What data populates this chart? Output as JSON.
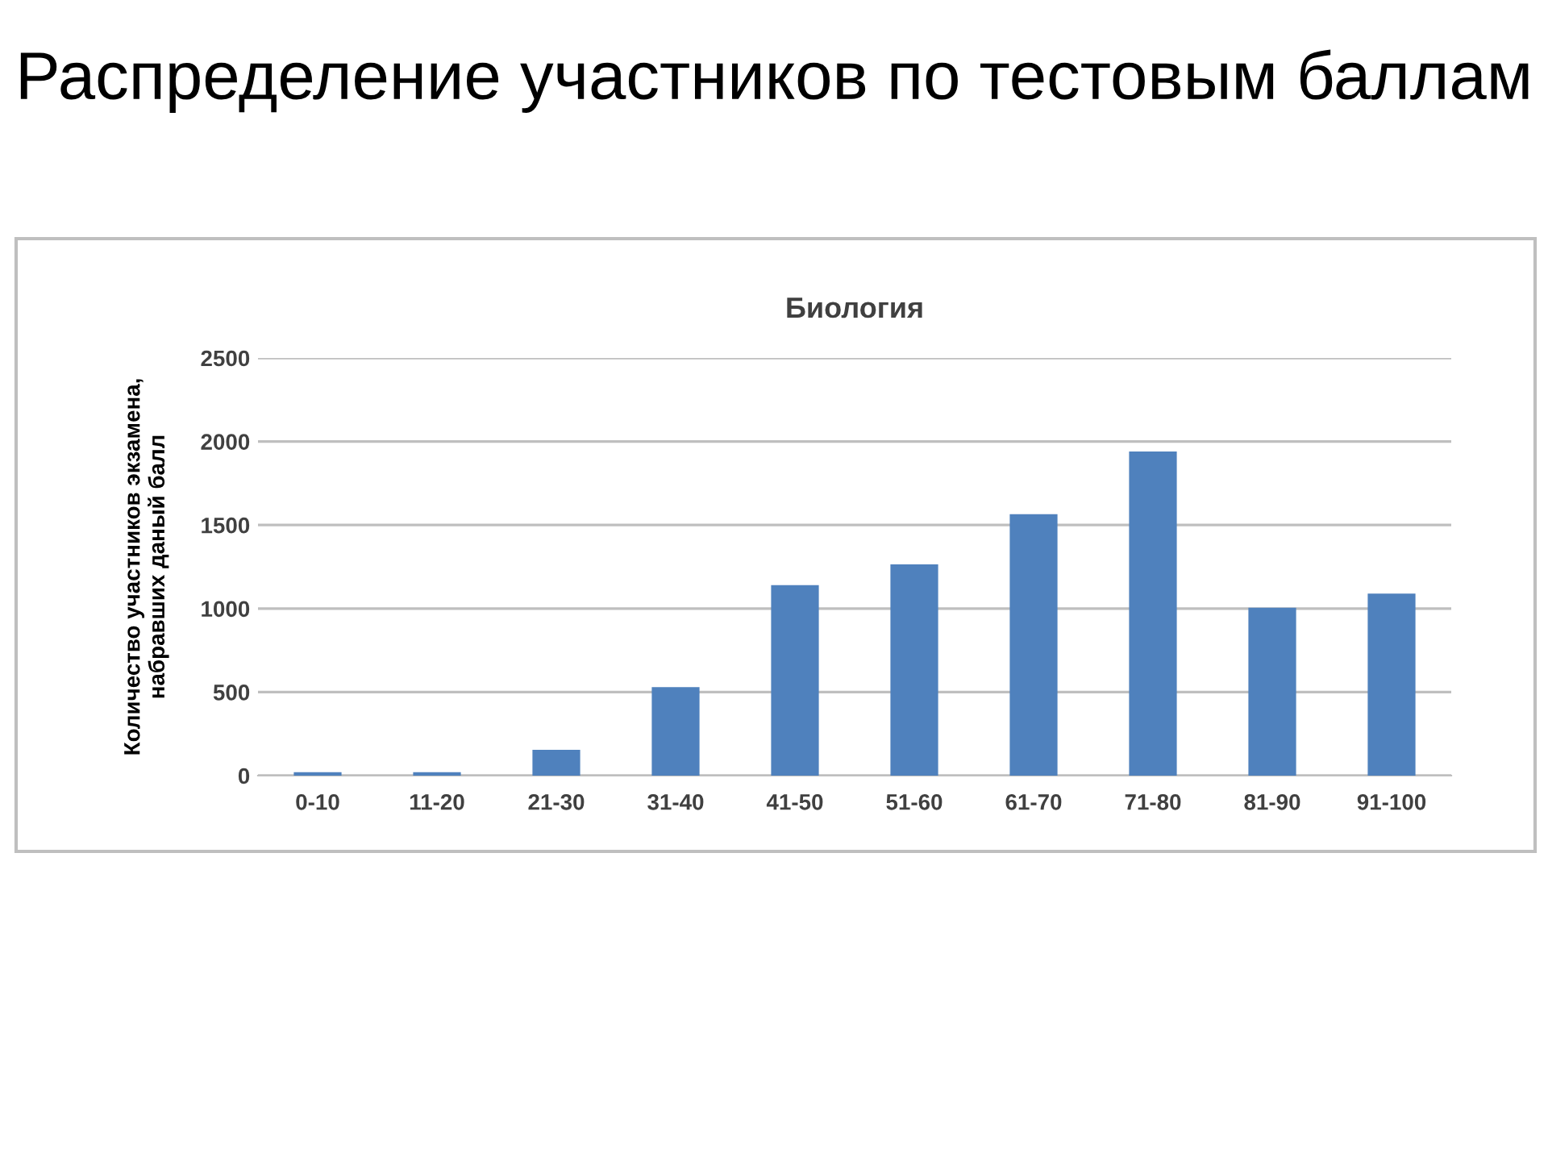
{
  "chart_data": {
    "type": "bar",
    "title": "Распределение участников по тестовым баллам",
    "subtitle": "Биология",
    "ylabel": "Количество участников экзамена,\nнабравших даный балл",
    "categories": [
      "0-10",
      "11-20",
      "21-30",
      "31-40",
      "41-50",
      "51-60",
      "61-70",
      "71-80",
      "81-90",
      "91-100"
    ],
    "values": [
      20,
      20,
      155,
      530,
      1140,
      1265,
      1565,
      1940,
      1005,
      1090
    ],
    "color": "#4f81bd",
    "ylim": [
      0,
      2500
    ],
    "yticks": [
      0,
      500,
      1000,
      1500,
      2000,
      2500
    ],
    "grid": "y"
  }
}
